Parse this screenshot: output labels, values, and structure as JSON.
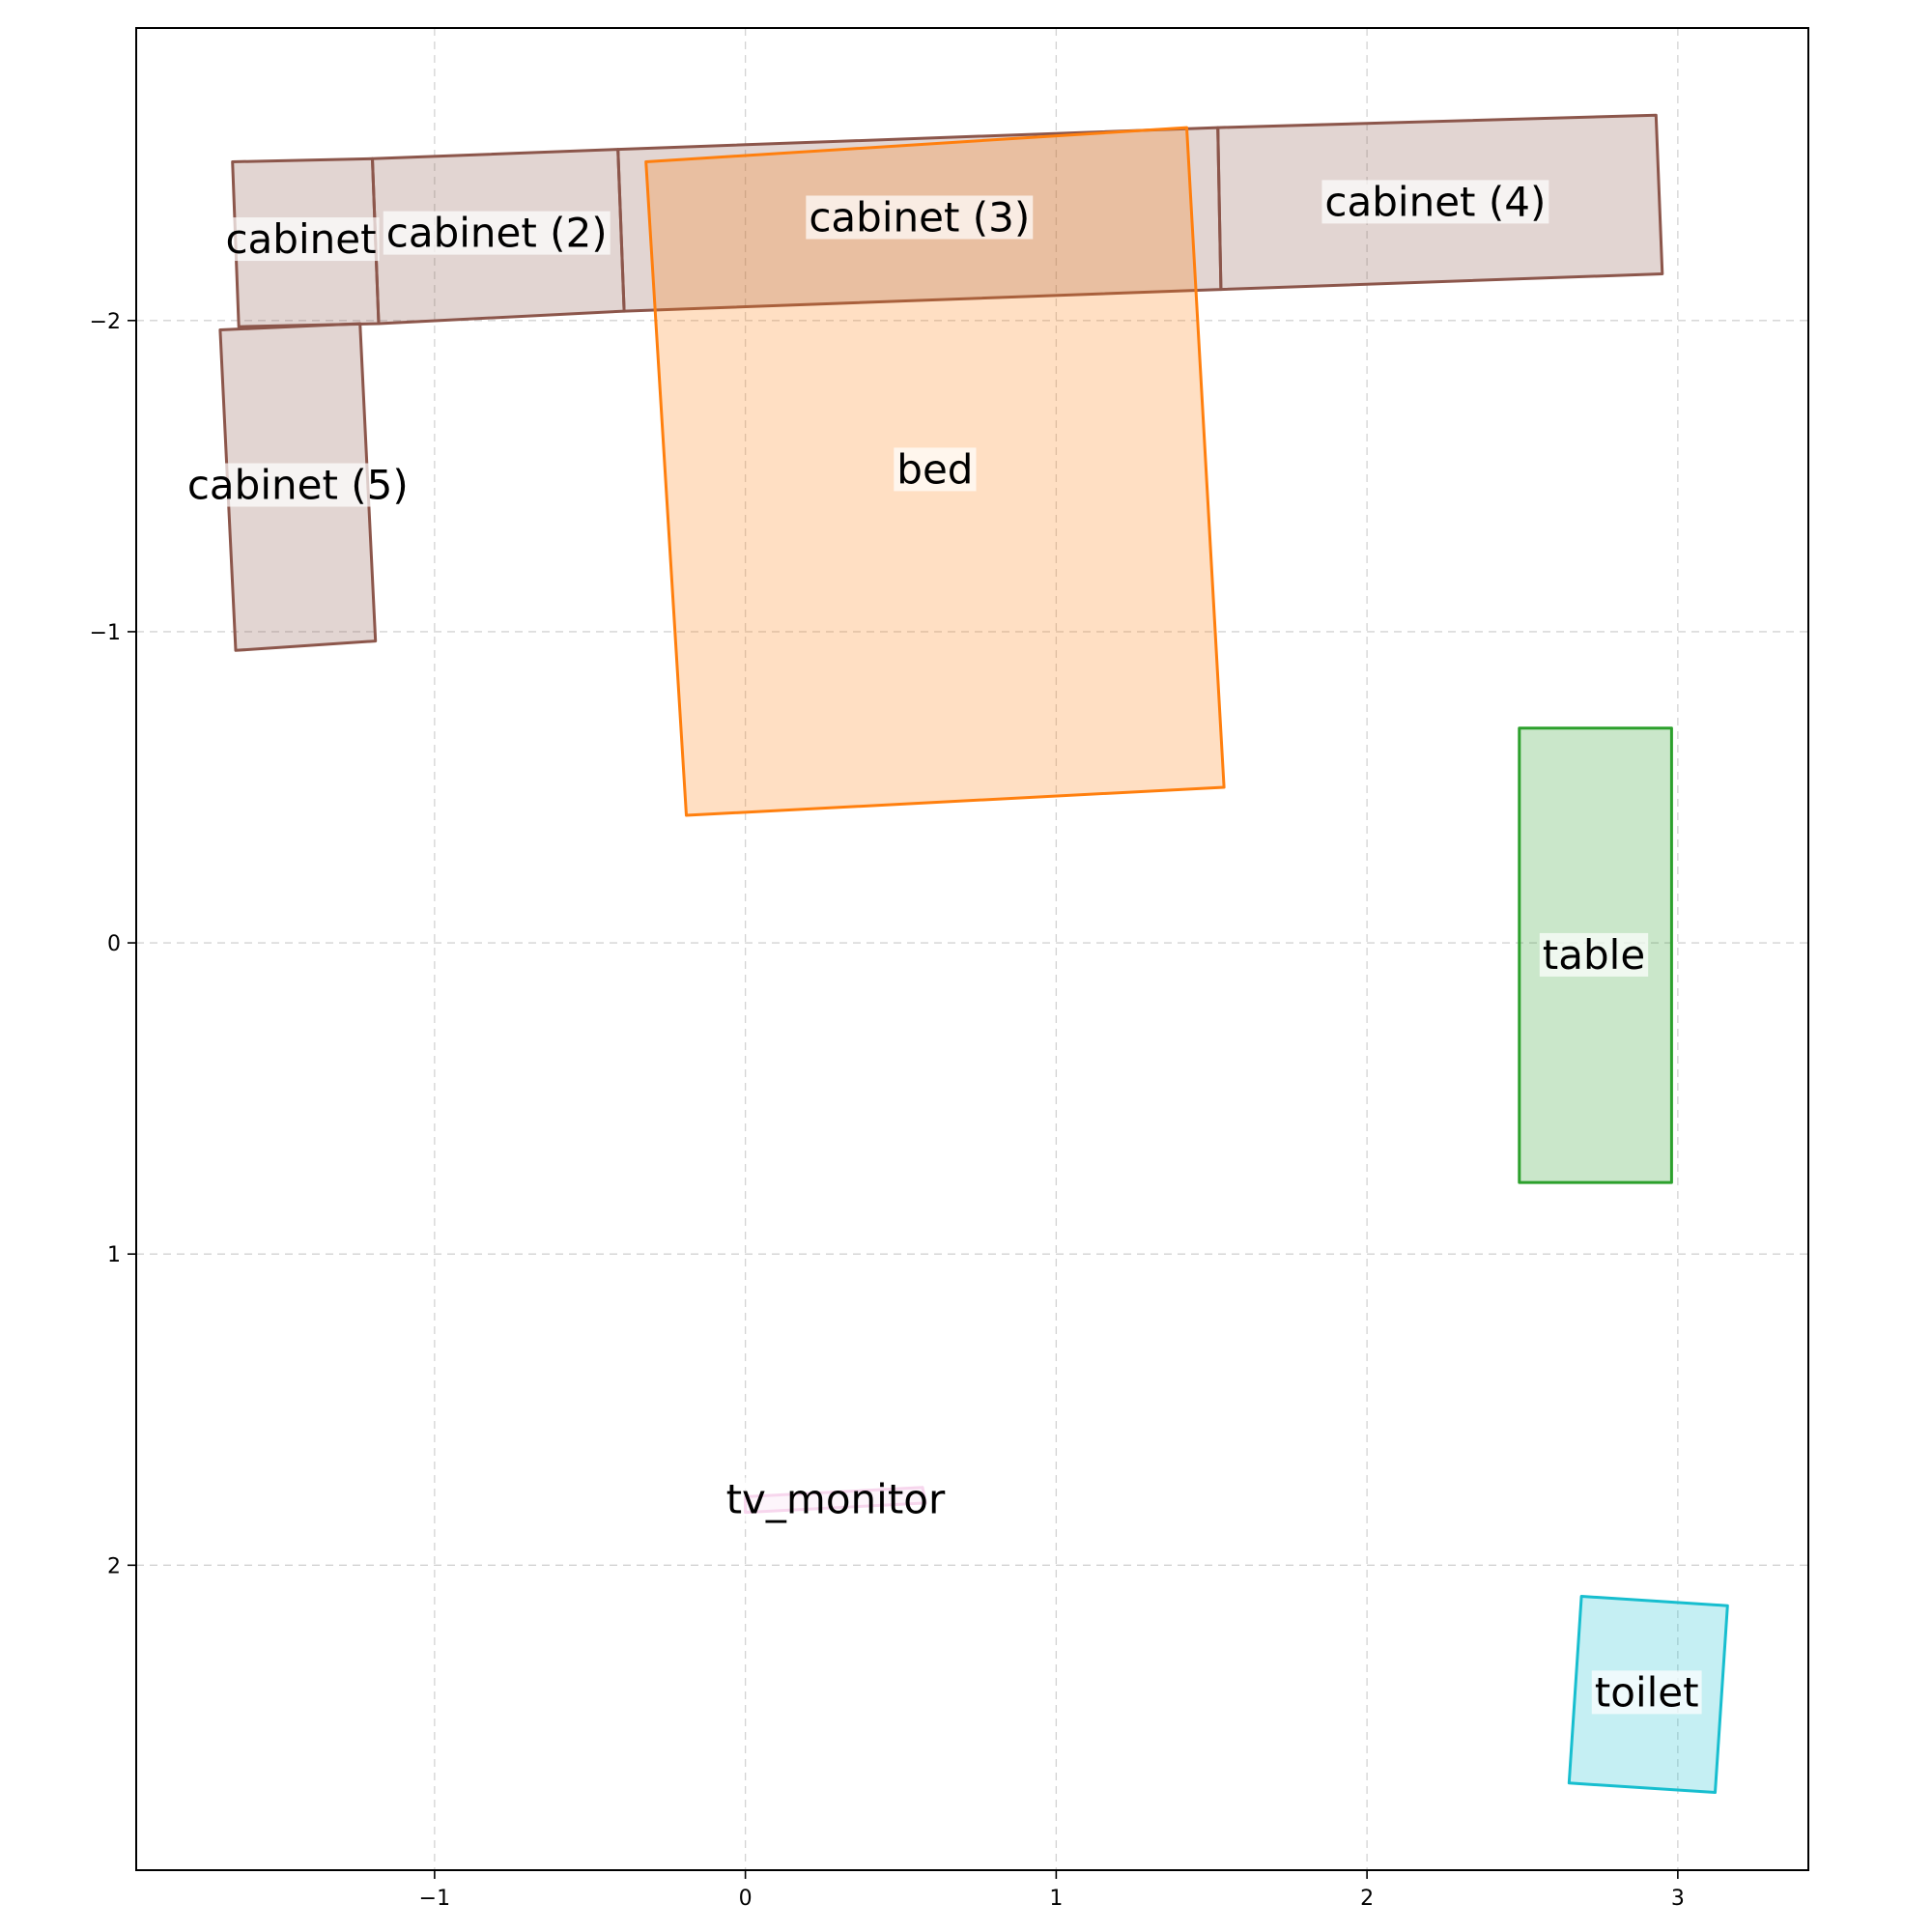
{
  "chart_data": {
    "type": "floor-plan",
    "title": "",
    "xlabel": "",
    "ylabel": "",
    "xlim": [
      -1.96,
      3.42
    ],
    "ylim": [
      2.98,
      -2.94
    ],
    "y_inverted": true,
    "grid": true,
    "x_ticks": [
      -1,
      0,
      1,
      2,
      3
    ],
    "y_ticks": [
      -2,
      -1,
      0,
      1,
      2
    ],
    "x_tick_labels": [
      "−1",
      "0",
      "1",
      "2",
      "3"
    ],
    "y_tick_labels": [
      "−2",
      "−1",
      "0",
      "1",
      "2"
    ],
    "objects": [
      {
        "label": "cabinet",
        "category": "cabinet",
        "color": "#8c564b",
        "polygon": [
          [
            -1.65,
            -2.51
          ],
          [
            -1.2,
            -2.52
          ],
          [
            -1.18,
            -1.99
          ],
          [
            -1.63,
            -1.98
          ]
        ],
        "label_at": [
          -1.43,
          -2.26
        ]
      },
      {
        "label": "cabinet (2)",
        "category": "cabinet",
        "color": "#8c564b",
        "polygon": [
          [
            -1.2,
            -2.52
          ],
          [
            -0.41,
            -2.55
          ],
          [
            -0.39,
            -2.03
          ],
          [
            -1.18,
            -1.99
          ]
        ],
        "label_at": [
          -0.8,
          -2.28
        ]
      },
      {
        "label": "cabinet (3)",
        "category": "cabinet",
        "color": "#8c564b",
        "polygon": [
          [
            -0.41,
            -2.55
          ],
          [
            1.52,
            -2.62
          ],
          [
            1.53,
            -2.1
          ],
          [
            -0.39,
            -2.03
          ]
        ],
        "label_at": [
          0.56,
          -2.33
        ]
      },
      {
        "label": "cabinet (4)",
        "category": "cabinet",
        "color": "#8c564b",
        "polygon": [
          [
            1.52,
            -2.62
          ],
          [
            2.93,
            -2.66
          ],
          [
            2.95,
            -2.15
          ],
          [
            1.53,
            -2.1
          ]
        ],
        "label_at": [
          2.22,
          -2.38
        ]
      },
      {
        "label": "cabinet (5)",
        "category": "cabinet",
        "color": "#8c564b",
        "polygon": [
          [
            -1.69,
            -1.97
          ],
          [
            -1.24,
            -1.99
          ],
          [
            -1.19,
            -0.97
          ],
          [
            -1.64,
            -0.94
          ]
        ],
        "label_at": [
          -1.44,
          -1.47
        ]
      },
      {
        "label": "bed",
        "category": "bed",
        "color": "#ff7f0e",
        "polygon": [
          [
            -0.32,
            -2.51
          ],
          [
            1.42,
            -2.62
          ],
          [
            1.54,
            -0.5
          ],
          [
            -0.19,
            -0.41
          ]
        ],
        "label_at": [
          0.61,
          -1.52
        ]
      },
      {
        "label": "table",
        "category": "table",
        "color": "#2ca02c",
        "polygon": [
          [
            2.49,
            -0.69
          ],
          [
            2.98,
            -0.69
          ],
          [
            2.98,
            0.77
          ],
          [
            2.49,
            0.77
          ]
        ],
        "label_at": [
          2.73,
          0.04
        ]
      },
      {
        "label": "tv_monitor",
        "category": "tv_monitor",
        "color": "#e377c2",
        "polygon": [
          [
            0.0,
            1.78
          ],
          [
            0.57,
            1.75
          ],
          [
            0.58,
            1.8
          ],
          [
            0.0,
            1.83
          ]
        ],
        "label_at": [
          0.29,
          1.79
        ]
      },
      {
        "label": "toilet",
        "category": "toilet",
        "color": "#17becf",
        "polygon": [
          [
            2.69,
            2.1
          ],
          [
            3.16,
            2.13
          ],
          [
            3.12,
            2.73
          ],
          [
            2.65,
            2.7
          ]
        ],
        "label_at": [
          2.9,
          2.41
        ]
      }
    ]
  }
}
